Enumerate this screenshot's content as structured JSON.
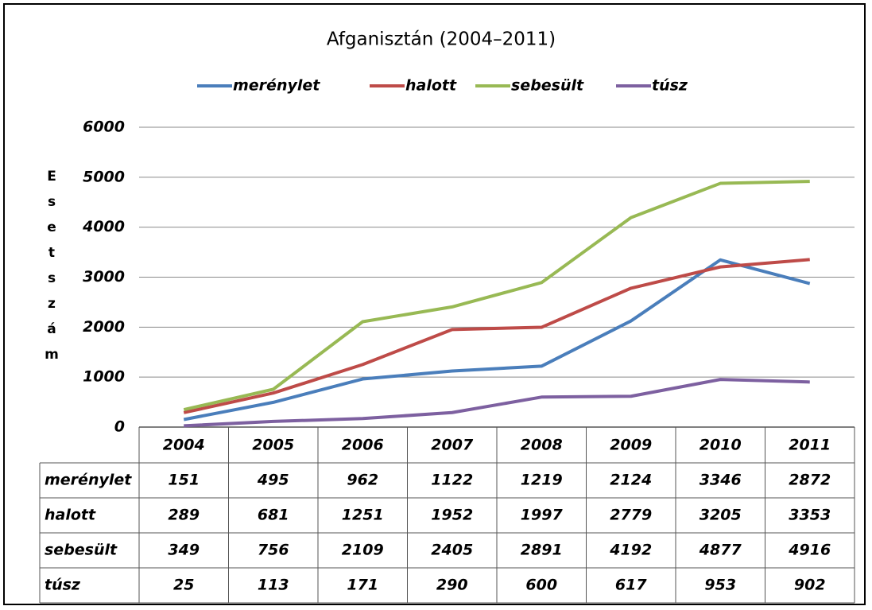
{
  "chart_data": {
    "type": "line",
    "title": "Afganisztán (2004–2011)",
    "y_label": "Esetszám",
    "categories": [
      "2004",
      "2005",
      "2006",
      "2007",
      "2008",
      "2009",
      "2010",
      "2011"
    ],
    "series": [
      {
        "name": "merénylet",
        "color": "#4a7ebb",
        "values": [
          151,
          495,
          962,
          1122,
          1219,
          2124,
          3346,
          2872
        ]
      },
      {
        "name": "halott",
        "color": "#be4b48",
        "values": [
          289,
          681,
          1251,
          1952,
          1997,
          2779,
          3205,
          3353
        ]
      },
      {
        "name": "sebesült",
        "color": "#98b954",
        "values": [
          349,
          756,
          2109,
          2405,
          2891,
          4192,
          4877,
          4916
        ]
      },
      {
        "name": "túsz",
        "color": "#7d60a0",
        "values": [
          25,
          113,
          171,
          290,
          600,
          617,
          953,
          902
        ]
      }
    ],
    "ylim": [
      0,
      6000
    ],
    "yticks": [
      0,
      1000,
      2000,
      3000,
      4000,
      5000,
      6000
    ],
    "grid": true,
    "legend": "top"
  }
}
